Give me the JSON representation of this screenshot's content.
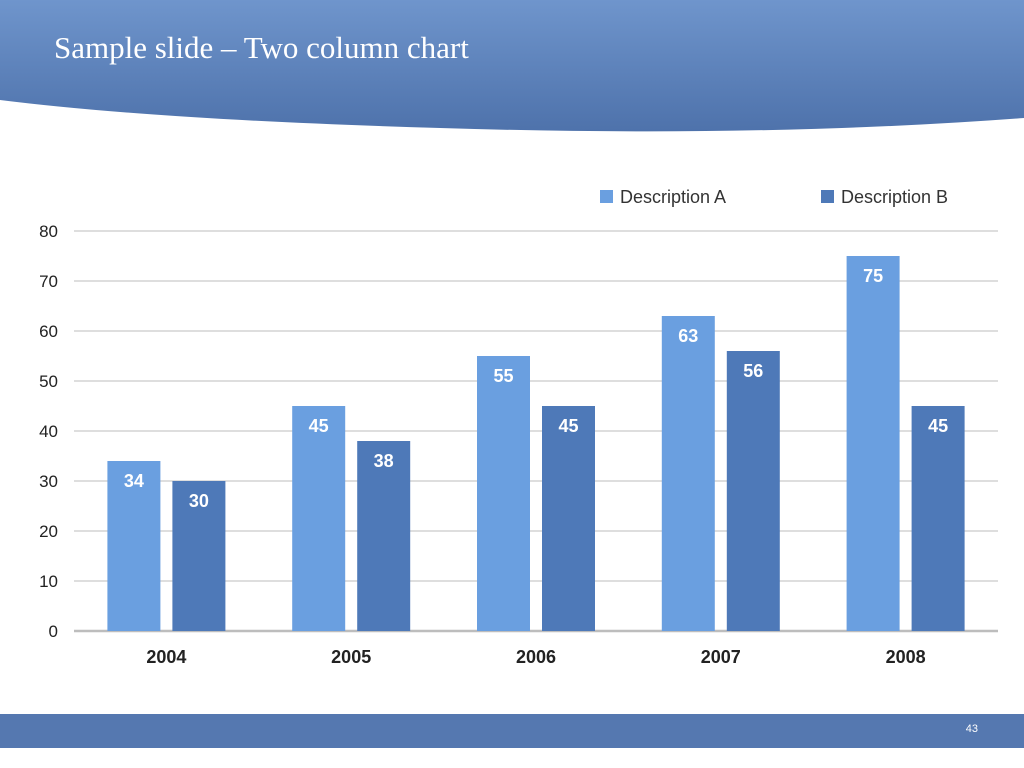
{
  "slide": {
    "title": "Sample slide – Two column chart",
    "page_number": "43"
  },
  "colors": {
    "header_top": "#6f95cc",
    "header_bottom": "#4e72ab",
    "series_a": "#6a9fe0",
    "series_b": "#4e79b8",
    "footer": "#5578b0",
    "grid": "#c9c9c9",
    "axis_text": "#222222",
    "data_label": "#ffffff"
  },
  "chart_data": {
    "type": "bar",
    "categories": [
      "2004",
      "2005",
      "2006",
      "2007",
      "2008"
    ],
    "series": [
      {
        "name": "Description A",
        "values": [
          34,
          45,
          55,
          63,
          75
        ]
      },
      {
        "name": "Description B",
        "values": [
          30,
          38,
          45,
          56,
          45
        ]
      }
    ],
    "ylim": [
      0,
      80
    ],
    "yticks": [
      0,
      10,
      20,
      30,
      40,
      50,
      60,
      70,
      80
    ],
    "grid": true,
    "legend_position": "top-right",
    "data_labels": true
  }
}
